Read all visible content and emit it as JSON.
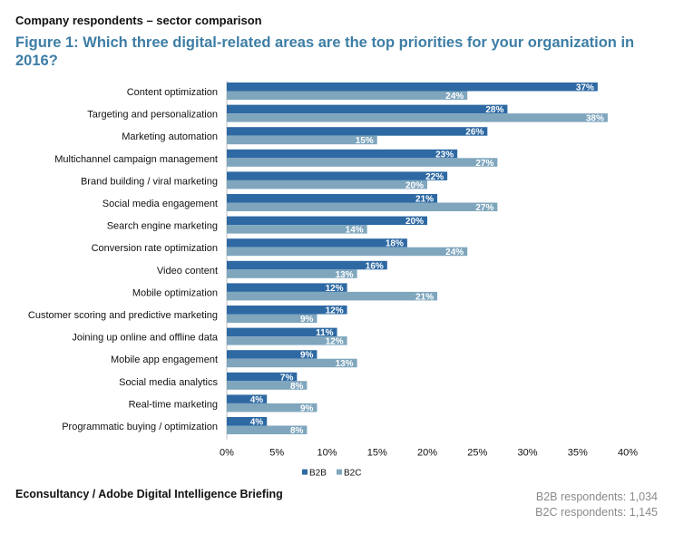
{
  "header": {
    "subtitle": "Company respondents – sector comparison",
    "title": "Figure 1: Which three digital-related areas are the top priorities for your organization in 2016?"
  },
  "chart_data": {
    "type": "bar",
    "orientation": "horizontal",
    "categories": [
      "Content optimization",
      "Targeting and personalization",
      "Marketing automation",
      "Multichannel campaign management",
      "Brand building / viral marketing",
      "Social media engagement",
      "Search engine marketing",
      "Conversion rate optimization",
      "Video content",
      "Mobile optimization",
      "Customer scoring and predictive marketing",
      "Joining up online and offline data",
      "Mobile app engagement",
      "Social media analytics",
      "Real-time marketing",
      "Programmatic buying / optimization"
    ],
    "series": [
      {
        "name": "B2B",
        "color": "#2e69a3",
        "values": [
          37,
          28,
          26,
          23,
          22,
          21,
          20,
          18,
          16,
          12,
          12,
          11,
          9,
          7,
          4,
          4
        ]
      },
      {
        "name": "B2C",
        "color": "#7fa6bd",
        "values": [
          24,
          38,
          15,
          27,
          20,
          27,
          14,
          24,
          13,
          21,
          9,
          12,
          13,
          8,
          9,
          8
        ]
      }
    ],
    "xlim": [
      0,
      40
    ],
    "xticks": [
      "0%",
      "5%",
      "10%",
      "15%",
      "20%",
      "25%",
      "30%",
      "35%",
      "40%"
    ],
    "value_suffix": "%",
    "legend": "bottom-center",
    "grid": false
  },
  "footer": {
    "source": "Econsultancy / Adobe Digital Intelligence Briefing",
    "b2b_respondents": "B2B respondents: 1,034",
    "b2c_respondents": "B2C respondents: 1,145"
  }
}
